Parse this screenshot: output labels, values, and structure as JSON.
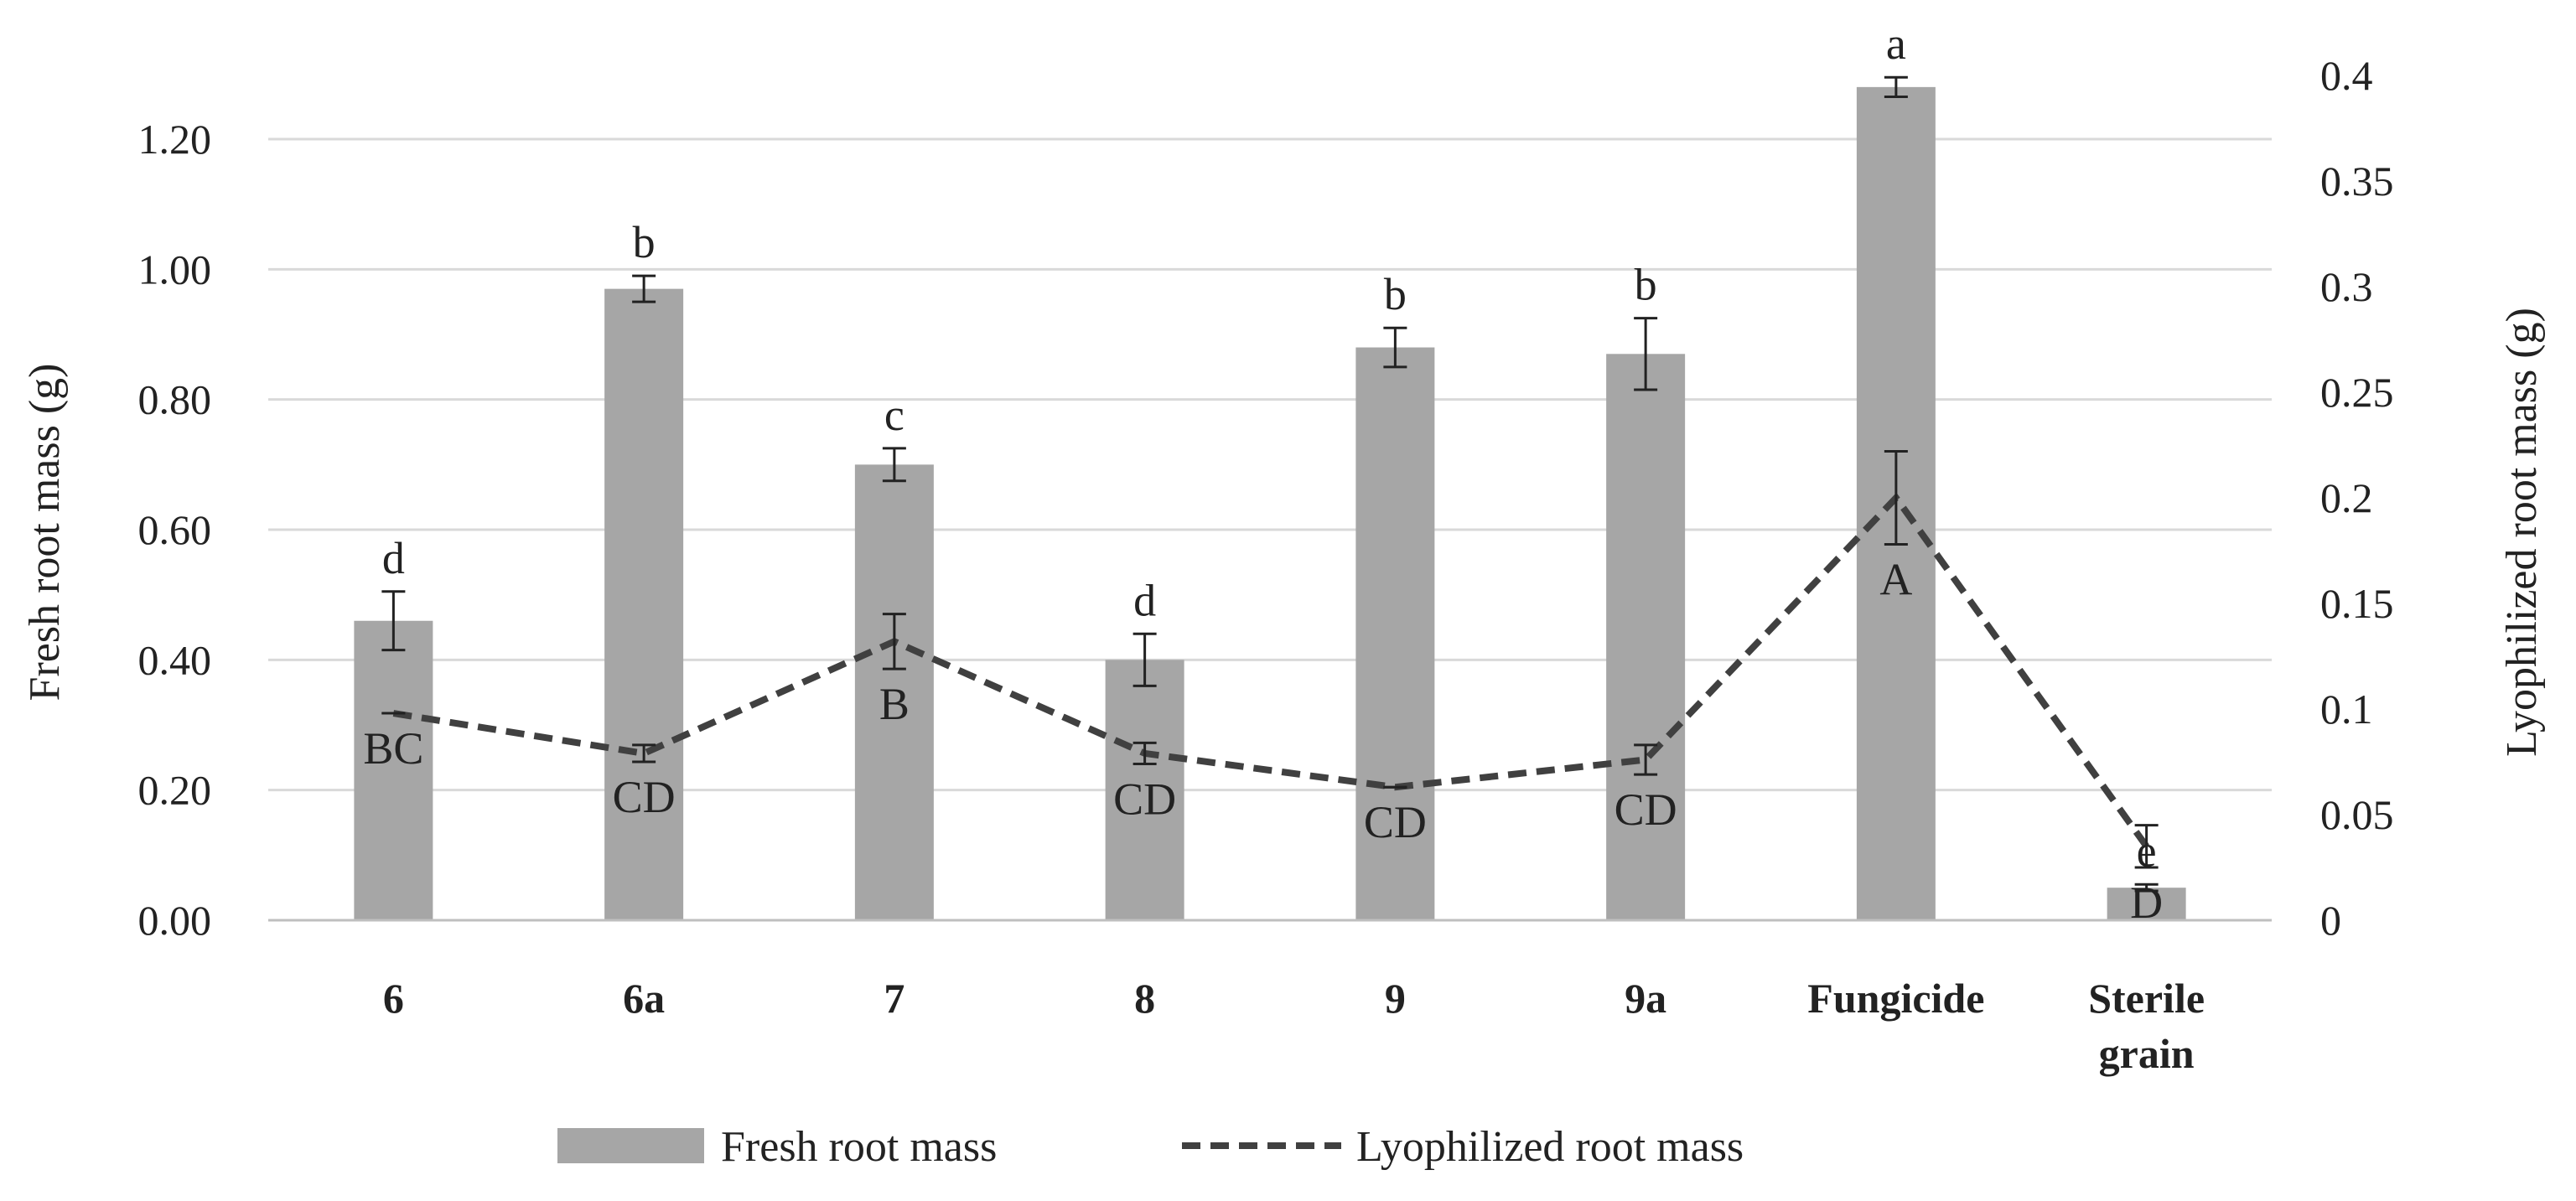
{
  "chart_data": {
    "type": "bar",
    "categories": [
      "6",
      "6a",
      "7",
      "8",
      "9",
      "9a",
      "Fungicide",
      "Sterile grain"
    ],
    "series": [
      {
        "name": "Fresh root mass",
        "kind": "bar",
        "axis": "left",
        "color": "#a6a6a6",
        "values": [
          0.46,
          0.97,
          0.7,
          0.4,
          0.88,
          0.87,
          1.28,
          0.05
        ],
        "errors": [
          0.045,
          0.02,
          0.025,
          0.04,
          0.03,
          0.055,
          0.015,
          0.005
        ],
        "significance": [
          "d",
          "b",
          "c",
          "d",
          "b",
          "b",
          "a",
          "e"
        ]
      },
      {
        "name": "Lyophilized root mass",
        "kind": "line",
        "style": "dashed",
        "axis": "right",
        "color": "#404040",
        "values": [
          0.098,
          0.079,
          0.132,
          0.079,
          0.063,
          0.076,
          0.2,
          0.035
        ],
        "errors": [
          0.0,
          0.004,
          0.013,
          0.005,
          0.0,
          0.007,
          0.022,
          0.01
        ],
        "significance": [
          "BC",
          "CD",
          "B",
          "CD",
          "CD",
          "CD",
          "A",
          "D"
        ]
      }
    ],
    "ylabel": "Fresh root mass (g)",
    "y2label": "Lyophilized root mass (g)",
    "ylim": [
      0,
      1.3
    ],
    "y2lim": [
      0,
      0.4
    ],
    "yticks": [
      "0.00",
      "0.20",
      "0.40",
      "0.60",
      "0.80",
      "1.00",
      "1.20"
    ],
    "y2ticks": [
      "0",
      "0.05",
      "0.1",
      "0.15",
      "0.2",
      "0.25",
      "0.3",
      "0.35",
      "0.4"
    ],
    "grid": true,
    "legend_position": "bottom"
  }
}
